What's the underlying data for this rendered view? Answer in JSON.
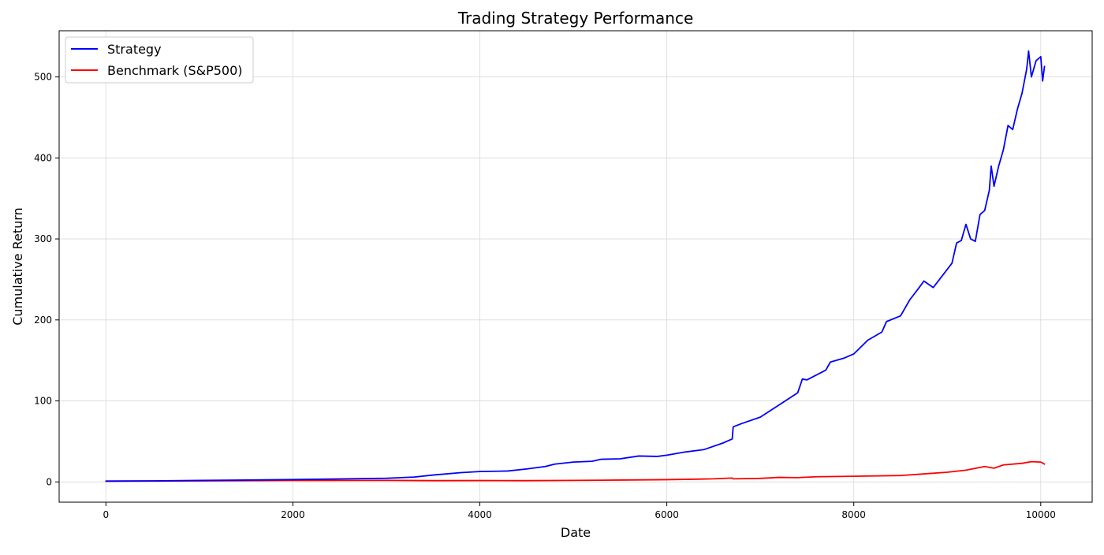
{
  "chart_data": {
    "type": "line",
    "title": "Trading Strategy Performance",
    "xlabel": "Date",
    "ylabel": "Cumulative Return",
    "xlim": [
      -500,
      10550
    ],
    "ylim": [
      -25,
      557
    ],
    "x_ticks": [
      0,
      2000,
      4000,
      6000,
      8000,
      10000
    ],
    "y_ticks": [
      0,
      100,
      200,
      300,
      400,
      500
    ],
    "grid": true,
    "legend_placement": "top-left",
    "series": [
      {
        "name": "Strategy",
        "color": "#0000ff",
        "points": [
          [
            0,
            1.0
          ],
          [
            500,
            1.3
          ],
          [
            1000,
            1.8
          ],
          [
            1500,
            2.3
          ],
          [
            2000,
            2.9
          ],
          [
            2500,
            3.7
          ],
          [
            3000,
            4.5
          ],
          [
            3300,
            6.0
          ],
          [
            3500,
            8.5
          ],
          [
            3800,
            11.5
          ],
          [
            4000,
            12.8
          ],
          [
            4300,
            13.5
          ],
          [
            4500,
            16.0
          ],
          [
            4700,
            19.0
          ],
          [
            4800,
            22.0
          ],
          [
            5000,
            24.5
          ],
          [
            5200,
            25.5
          ],
          [
            5300,
            28.0
          ],
          [
            5500,
            28.5
          ],
          [
            5700,
            32.0
          ],
          [
            5900,
            31.5
          ],
          [
            6000,
            33.0
          ],
          [
            6200,
            37.0
          ],
          [
            6400,
            40.0
          ],
          [
            6600,
            48.0
          ],
          [
            6700,
            53.0
          ],
          [
            6710,
            68.0
          ],
          [
            6800,
            72.0
          ],
          [
            7000,
            80.0
          ],
          [
            7200,
            95.0
          ],
          [
            7400,
            110.0
          ],
          [
            7450,
            127.0
          ],
          [
            7500,
            126.0
          ],
          [
            7700,
            138.0
          ],
          [
            7750,
            148.0
          ],
          [
            7900,
            153.0
          ],
          [
            8000,
            158.0
          ],
          [
            8150,
            175.0
          ],
          [
            8300,
            185.0
          ],
          [
            8350,
            198.0
          ],
          [
            8500,
            205.0
          ],
          [
            8600,
            225.0
          ],
          [
            8700,
            240.0
          ],
          [
            8750,
            248.0
          ],
          [
            8850,
            240.0
          ],
          [
            8950,
            255.0
          ],
          [
            9050,
            270.0
          ],
          [
            9100,
            295.0
          ],
          [
            9150,
            298.0
          ],
          [
            9200,
            318.0
          ],
          [
            9250,
            300.0
          ],
          [
            9300,
            297.0
          ],
          [
            9350,
            330.0
          ],
          [
            9400,
            335.0
          ],
          [
            9450,
            360.0
          ],
          [
            9470,
            390.0
          ],
          [
            9500,
            365.0
          ],
          [
            9550,
            390.0
          ],
          [
            9600,
            410.0
          ],
          [
            9650,
            440.0
          ],
          [
            9700,
            435.0
          ],
          [
            9750,
            460.0
          ],
          [
            9800,
            480.0
          ],
          [
            9850,
            510.0
          ],
          [
            9870,
            532.0
          ],
          [
            9900,
            500.0
          ],
          [
            9950,
            520.0
          ],
          [
            10000,
            525.0
          ],
          [
            10020,
            495.0
          ],
          [
            10040,
            513.0
          ]
        ]
      },
      {
        "name": "Benchmark (S&P500)",
        "color": "#ff0000",
        "points": [
          [
            0,
            1.0
          ],
          [
            1000,
            1.3
          ],
          [
            2000,
            1.8
          ],
          [
            3000,
            1.9
          ],
          [
            3500,
            1.6
          ],
          [
            4000,
            1.7
          ],
          [
            4500,
            1.6
          ],
          [
            5000,
            1.9
          ],
          [
            5500,
            2.3
          ],
          [
            6000,
            2.8
          ],
          [
            6500,
            3.8
          ],
          [
            6700,
            4.8
          ],
          [
            6710,
            3.8
          ],
          [
            7000,
            4.4
          ],
          [
            7200,
            5.6
          ],
          [
            7400,
            5.3
          ],
          [
            7600,
            6.4
          ],
          [
            8000,
            7.0
          ],
          [
            8500,
            7.9
          ],
          [
            8700,
            9.5
          ],
          [
            9000,
            12.0
          ],
          [
            9200,
            14.5
          ],
          [
            9400,
            19.0
          ],
          [
            9500,
            17.0
          ],
          [
            9600,
            21.0
          ],
          [
            9800,
            23.0
          ],
          [
            9900,
            25.0
          ],
          [
            10000,
            24.5
          ],
          [
            10040,
            22.0
          ]
        ]
      }
    ]
  }
}
